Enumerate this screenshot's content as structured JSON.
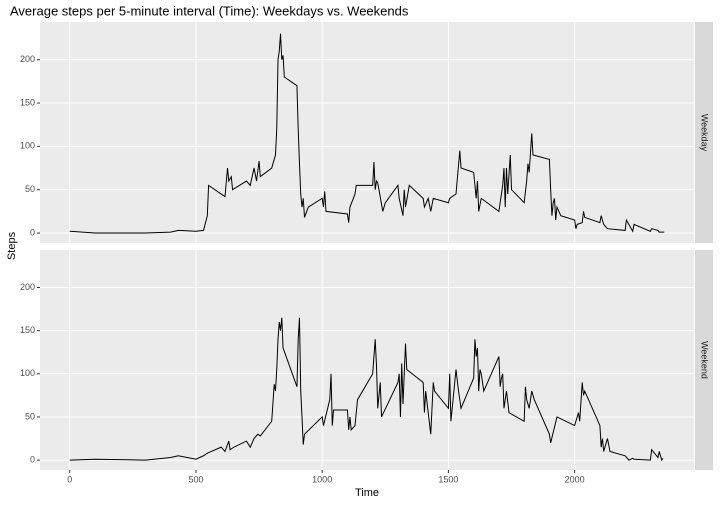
{
  "chart_data": {
    "type": "line",
    "title": "Average steps per 5-minute interval (Time): Weekdays vs. Weekends",
    "xlabel": "Time",
    "ylabel": "Steps",
    "xlim": [
      -117.75,
      2472.75
    ],
    "xticks": [
      0,
      500,
      1000,
      1500,
      2000
    ],
    "ylim": [
      -11.5,
      243.5
    ],
    "yticks": [
      0,
      50,
      100,
      150,
      200
    ],
    "grid": true,
    "series": [
      {
        "name": "Weekday",
        "color": "#000000",
        "x": [
          0,
          100,
          200,
          300,
          400,
          430,
          500,
          530,
          545,
          550,
          600,
          615,
          625,
          630,
          640,
          645,
          700,
          715,
          730,
          740,
          750,
          755,
          800,
          815,
          820,
          825,
          830,
          835,
          840,
          845,
          850,
          900,
          905,
          910,
          915,
          920,
          925,
          930,
          945,
          1000,
          1005,
          1010,
          1015,
          1100,
          1105,
          1110,
          1130,
          1135,
          1200,
          1205,
          1210,
          1215,
          1220,
          1240,
          1250,
          1300,
          1305,
          1320,
          1325,
          1330,
          1345,
          1400,
          1405,
          1420,
          1430,
          1440,
          1500,
          1505,
          1530,
          1545,
          1550,
          1600,
          1610,
          1615,
          1620,
          1630,
          1700,
          1715,
          1720,
          1725,
          1730,
          1735,
          1745,
          1750,
          1800,
          1810,
          1815,
          1820,
          1830,
          1835,
          1900,
          1905,
          1910,
          1915,
          1920,
          1925,
          1930,
          1945,
          2000,
          2005,
          2010,
          2030,
          2035,
          2040,
          2100,
          2105,
          2115,
          2130,
          2200,
          2205,
          2230,
          2235,
          2300,
          2305,
          2330,
          2335,
          2355
        ],
        "values": [
          2,
          0,
          0,
          0,
          1,
          3,
          2,
          3,
          20,
          55,
          45,
          42,
          75,
          60,
          65,
          50,
          60,
          55,
          75,
          60,
          83,
          65,
          75,
          90,
          120,
          200,
          210,
          230,
          200,
          205,
          180,
          170,
          120,
          80,
          45,
          30,
          40,
          18,
          30,
          40,
          30,
          48,
          25,
          22,
          12,
          30,
          45,
          55,
          55,
          82,
          50,
          60,
          58,
          25,
          35,
          55,
          40,
          20,
          50,
          30,
          55,
          40,
          30,
          40,
          25,
          40,
          35,
          40,
          45,
          95,
          75,
          70,
          40,
          60,
          25,
          40,
          25,
          55,
          75,
          30,
          75,
          45,
          90,
          50,
          35,
          60,
          80,
          70,
          115,
          90,
          85,
          50,
          20,
          35,
          40,
          15,
          30,
          20,
          15,
          5,
          10,
          12,
          25,
          18,
          12,
          20,
          10,
          5,
          3,
          15,
          2,
          10,
          2,
          5,
          3,
          1,
          1
        ]
      },
      {
        "name": "Weekend",
        "color": "#000000",
        "x": [
          0,
          100,
          300,
          400,
          430,
          500,
          530,
          545,
          600,
          615,
          630,
          635,
          650,
          700,
          715,
          730,
          745,
          755,
          800,
          810,
          815,
          820,
          825,
          830,
          835,
          840,
          845,
          900,
          905,
          910,
          915,
          920,
          925,
          930,
          1000,
          1005,
          1030,
          1035,
          1040,
          1045,
          1100,
          1105,
          1110,
          1115,
          1130,
          1135,
          1140,
          1200,
          1210,
          1215,
          1220,
          1230,
          1235,
          1300,
          1305,
          1310,
          1315,
          1320,
          1330,
          1335,
          1400,
          1405,
          1410,
          1430,
          1440,
          1445,
          1500,
          1505,
          1510,
          1530,
          1540,
          1550,
          1600,
          1605,
          1610,
          1615,
          1620,
          1625,
          1630,
          1640,
          1700,
          1705,
          1710,
          1715,
          1720,
          1730,
          1740,
          1800,
          1805,
          1810,
          1820,
          1830,
          1840,
          1900,
          1905,
          1930,
          2000,
          2015,
          2020,
          2030,
          2035,
          2040,
          2100,
          2105,
          2110,
          2115,
          2130,
          2140,
          2200,
          2215,
          2230,
          2235,
          2300,
          2305,
          2330,
          2335,
          2345,
          2350
        ],
        "values": [
          0,
          1,
          0,
          3,
          5,
          1,
          5,
          8,
          15,
          10,
          22,
          12,
          15,
          22,
          15,
          25,
          30,
          28,
          45,
          88,
          80,
          105,
          140,
          160,
          150,
          165,
          130,
          85,
          140,
          165,
          80,
          50,
          18,
          30,
          50,
          40,
          70,
          100,
          40,
          58,
          58,
          35,
          50,
          35,
          40,
          55,
          70,
          100,
          140,
          110,
          60,
          90,
          50,
          90,
          100,
          50,
          112,
          65,
          135,
          105,
          90,
          55,
          80,
          30,
          90,
          80,
          60,
          100,
          45,
          105,
          80,
          60,
          95,
          140,
          120,
          130,
          80,
          105,
          100,
          80,
          120,
          85,
          95,
          100,
          60,
          80,
          55,
          45,
          85,
          70,
          60,
          80,
          70,
          30,
          20,
          50,
          40,
          55,
          45,
          90,
          75,
          80,
          40,
          15,
          25,
          10,
          25,
          10,
          5,
          0,
          2,
          1,
          0,
          12,
          3,
          10,
          0,
          2
        ]
      }
    ]
  }
}
